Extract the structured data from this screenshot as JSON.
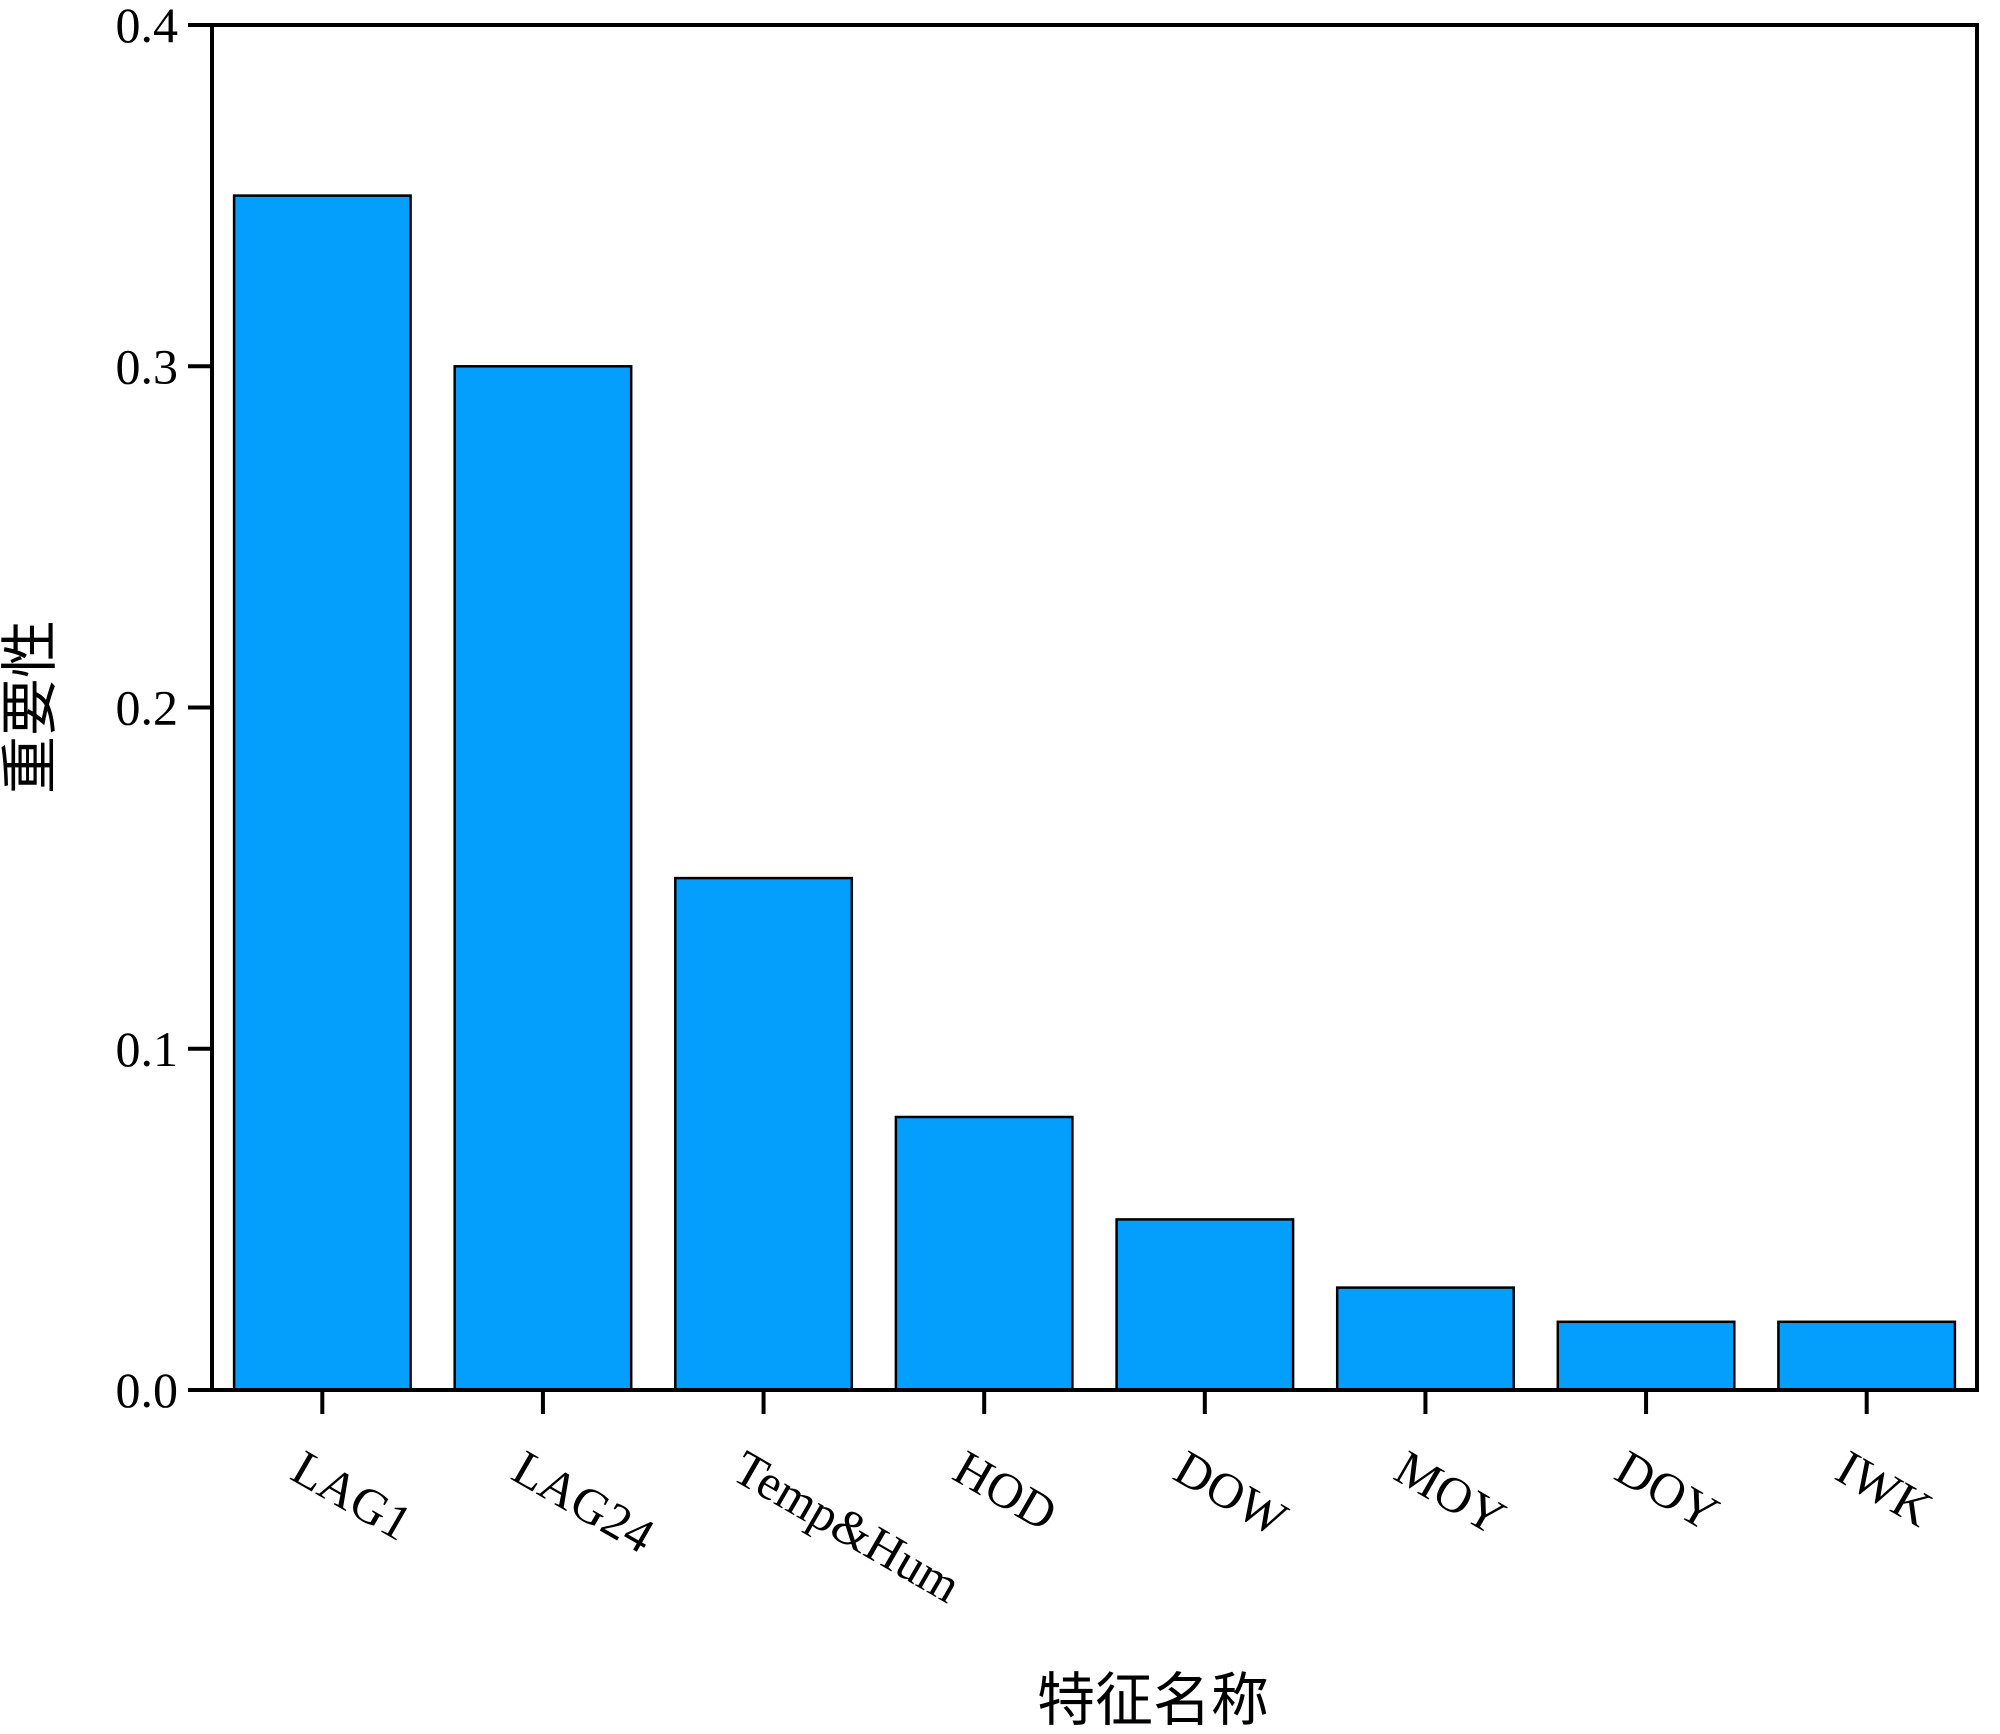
{
  "chart_data": {
    "type": "bar",
    "categories": [
      "LAG1",
      "LAG24",
      "Temp&Hum",
      "HOD",
      "DOW",
      "MOY",
      "DOY",
      "IWK"
    ],
    "values": [
      0.35,
      0.3,
      0.15,
      0.08,
      0.05,
      0.03,
      0.02,
      0.02
    ],
    "ylim": [
      0,
      0.4
    ],
    "yticks": [
      "0.0",
      "0.1",
      "0.2",
      "0.3",
      "0.4"
    ],
    "xlabel": "特征名称",
    "ylabel": "重要性",
    "bar_color": "#049ffd",
    "grid": false
  }
}
